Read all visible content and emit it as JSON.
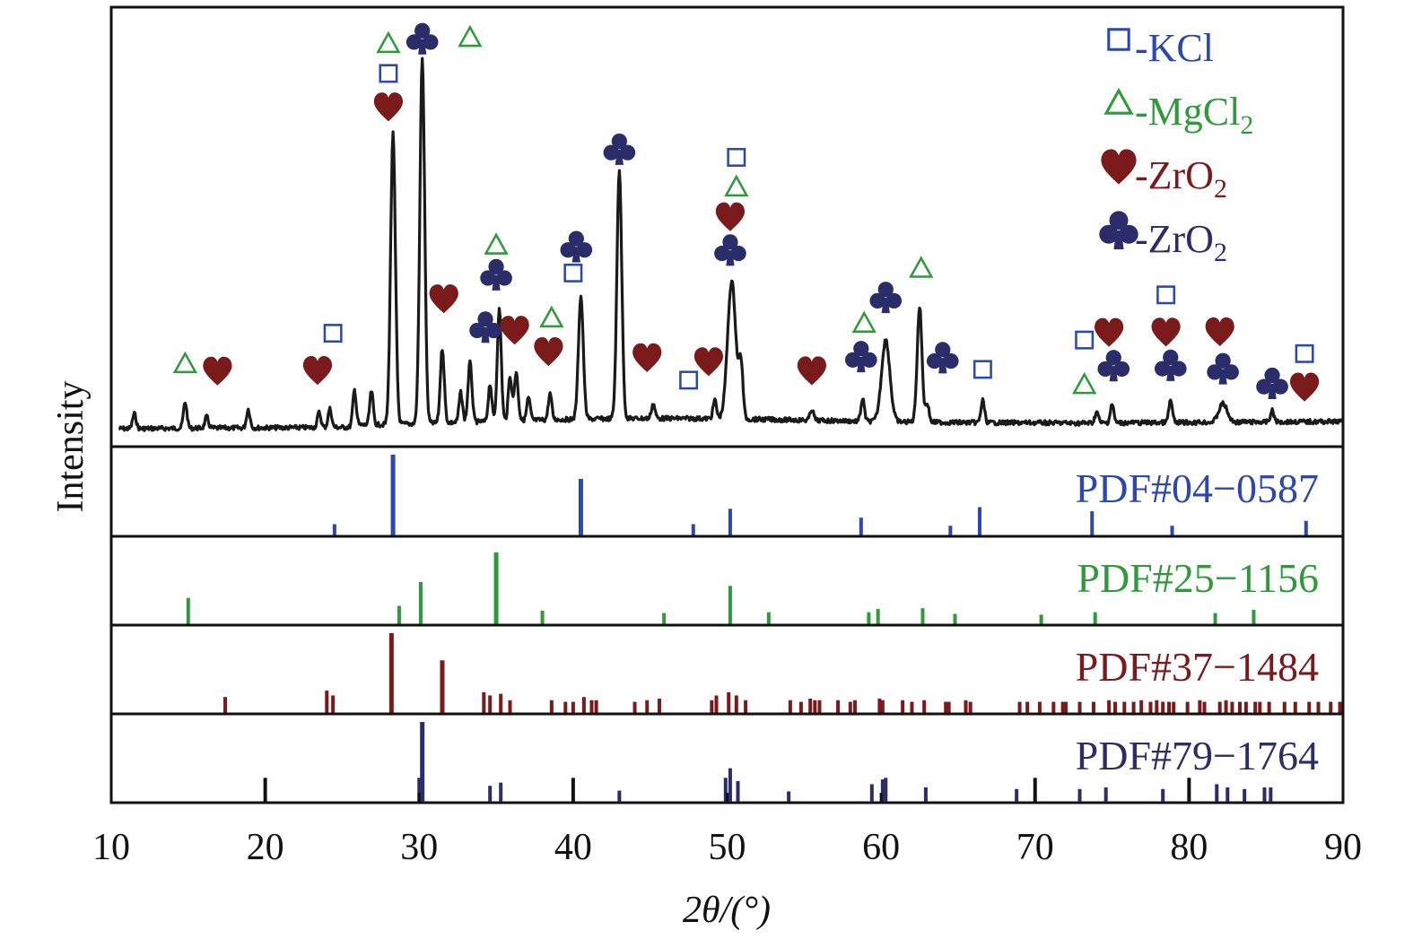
{
  "chart_data": {
    "type": "line",
    "title": "",
    "xlabel": "2θ/(°)",
    "ylabel": "Intensity",
    "xlim": [
      10,
      90
    ],
    "xticks": [
      "10",
      "20",
      "30",
      "40",
      "50",
      "60",
      "70",
      "80",
      "90"
    ],
    "grid": false,
    "colors": {
      "pattern": "#1a1a1a",
      "kcl": "#2a48b0",
      "mgcl2": "#2e9a3a",
      "zro2_m": "#7a1a1a",
      "zro2_t": "#2a2d6a"
    },
    "legend": {
      "placement": "top-right",
      "entries": [
        {
          "symbol": "□",
          "base": "-KCl",
          "sub": "",
          "color": "#2a48b0",
          "marker": "square"
        },
        {
          "symbol": "△",
          "base": "-MgCl",
          "sub": "2",
          "color": "#2e9a3a",
          "marker": "triangle"
        },
        {
          "symbol": "♥",
          "base": "-ZrO",
          "sub": "2",
          "color": "#7a1a1a",
          "marker": "heart"
        },
        {
          "symbol": "♣",
          "base": "-ZrO",
          "sub": "2",
          "color": "#2a2d6a",
          "marker": "club"
        }
      ]
    },
    "pattern_peaks": [
      {
        "x": 11.5,
        "h": 4
      },
      {
        "x": 14.8,
        "h": 7
      },
      {
        "x": 16.2,
        "h": 3
      },
      {
        "x": 18.9,
        "h": 5
      },
      {
        "x": 23.5,
        "h": 4
      },
      {
        "x": 24.2,
        "h": 5
      },
      {
        "x": 25.8,
        "h": 10
      },
      {
        "x": 26.9,
        "h": 9
      },
      {
        "x": 28.3,
        "h": 78
      },
      {
        "x": 30.2,
        "h": 98
      },
      {
        "x": 31.5,
        "h": 20
      },
      {
        "x": 32.7,
        "h": 8
      },
      {
        "x": 33.3,
        "h": 16
      },
      {
        "x": 34.6,
        "h": 10
      },
      {
        "x": 35.2,
        "h": 30
      },
      {
        "x": 35.9,
        "h": 12
      },
      {
        "x": 36.3,
        "h": 13
      },
      {
        "x": 37.1,
        "h": 6
      },
      {
        "x": 38.5,
        "h": 7
      },
      {
        "x": 40.5,
        "h": 33
      },
      {
        "x": 43.0,
        "h": 67
      },
      {
        "x": 45.2,
        "h": 4
      },
      {
        "x": 49.2,
        "h": 5
      },
      {
        "x": 50.3,
        "h": 37
      },
      {
        "x": 50.9,
        "h": 14
      },
      {
        "x": 55.5,
        "h": 3
      },
      {
        "x": 58.8,
        "h": 6
      },
      {
        "x": 60.3,
        "h": 22
      },
      {
        "x": 62.5,
        "h": 31
      },
      {
        "x": 63.0,
        "h": 5
      },
      {
        "x": 66.6,
        "h": 6
      },
      {
        "x": 74.0,
        "h": 3
      },
      {
        "x": 75.0,
        "h": 5
      },
      {
        "x": 78.8,
        "h": 6
      },
      {
        "x": 82.2,
        "h": 5
      },
      {
        "x": 85.4,
        "h": 3
      }
    ],
    "annotations": [
      {
        "phase": "mgcl2",
        "x": 14.8,
        "y": 12
      },
      {
        "phase": "zro2_m",
        "x": 16.9,
        "y": 10
      },
      {
        "phase": "zro2_m",
        "x": 23.4,
        "y": 10
      },
      {
        "phase": "kcl",
        "x": 24.4,
        "y": 20
      },
      {
        "phase": "zro2_m",
        "x": 28.0,
        "y": 80
      },
      {
        "phase": "kcl",
        "x": 28.0,
        "y": 89
      },
      {
        "phase": "mgcl2",
        "x": 28.0,
        "y": 97
      },
      {
        "phase": "zro2_t",
        "x": 30.2,
        "y": 98
      },
      {
        "phase": "mgcl2",
        "x": 33.3,
        "y": 98
      },
      {
        "phase": "zro2_m",
        "x": 31.6,
        "y": 28
      },
      {
        "phase": "zro2_t",
        "x": 34.3,
        "y": 20
      },
      {
        "phase": "zro2_t",
        "x": 35.0,
        "y": 34
      },
      {
        "phase": "mgcl2",
        "x": 35.0,
        "y": 42
      },
      {
        "phase": "zro2_m",
        "x": 36.2,
        "y": 19
      },
      {
        "phase": "mgcl2",
        "x": 38.6,
        "y": 22
      },
      {
        "phase": "zro2_m",
        "x": 38.4,
        "y": 13
      },
      {
        "phase": "kcl",
        "x": 40.0,
        "y": 34
      },
      {
        "phase": "zro2_t",
        "x": 40.2,
        "y": 41
      },
      {
        "phase": "zro2_t",
        "x": 43.0,
        "y": 67
      },
      {
        "phase": "zro2_m",
        "x": 44.8,
        "y": 11
      },
      {
        "phase": "kcl",
        "x": 47.5,
        "y": 5
      },
      {
        "phase": "zro2_m",
        "x": 48.8,
        "y": 10
      },
      {
        "phase": "zro2_t",
        "x": 50.2,
        "y": 40
      },
      {
        "phase": "zro2_m",
        "x": 50.2,
        "y": 49
      },
      {
        "phase": "mgcl2",
        "x": 50.6,
        "y": 57
      },
      {
        "phase": "kcl",
        "x": 50.6,
        "y": 65
      },
      {
        "phase": "zro2_m",
        "x": 55.5,
        "y": 8
      },
      {
        "phase": "zro2_t",
        "x": 58.7,
        "y": 12
      },
      {
        "phase": "mgcl2",
        "x": 58.9,
        "y": 21
      },
      {
        "phase": "zro2_t",
        "x": 60.3,
        "y": 28
      },
      {
        "phase": "mgcl2",
        "x": 62.6,
        "y": 36
      },
      {
        "phase": "zro2_t",
        "x": 64.0,
        "y": 12
      },
      {
        "phase": "kcl",
        "x": 66.6,
        "y": 9
      },
      {
        "phase": "mgcl2",
        "x": 73.2,
        "y": 5
      },
      {
        "phase": "kcl",
        "x": 73.2,
        "y": 17
      },
      {
        "phase": "zro2_m",
        "x": 74.8,
        "y": 19
      },
      {
        "phase": "zro2_t",
        "x": 75.1,
        "y": 10
      },
      {
        "phase": "kcl",
        "x": 78.5,
        "y": 29
      },
      {
        "phase": "zro2_m",
        "x": 78.5,
        "y": 19
      },
      {
        "phase": "zro2_t",
        "x": 78.8,
        "y": 10
      },
      {
        "phase": "zro2_m",
        "x": 82.0,
        "y": 19
      },
      {
        "phase": "zro2_t",
        "x": 82.2,
        "y": 9
      },
      {
        "phase": "zro2_t",
        "x": 85.4,
        "y": 5
      },
      {
        "phase": "kcl",
        "x": 87.5,
        "y": 13
      },
      {
        "phase": "zro2_m",
        "x": 87.5,
        "y": 4
      }
    ],
    "references": [
      {
        "label": "PDF#04−0587",
        "color": "#2a48b0",
        "lines": [
          {
            "x": 24.5,
            "h": 14
          },
          {
            "x": 28.3,
            "h": 100
          },
          {
            "x": 40.5,
            "h": 70
          },
          {
            "x": 47.8,
            "h": 14
          },
          {
            "x": 50.2,
            "h": 33
          },
          {
            "x": 58.7,
            "h": 22
          },
          {
            "x": 64.5,
            "h": 12
          },
          {
            "x": 66.4,
            "h": 35
          },
          {
            "x": 73.7,
            "h": 30
          },
          {
            "x": 78.9,
            "h": 12
          },
          {
            "x": 87.6,
            "h": 18
          }
        ]
      },
      {
        "label": "PDF#25−1156",
        "color": "#2e9a3a",
        "lines": [
          {
            "x": 15.0,
            "h": 33
          },
          {
            "x": 28.7,
            "h": 23
          },
          {
            "x": 30.1,
            "h": 53
          },
          {
            "x": 35.0,
            "h": 90
          },
          {
            "x": 38.0,
            "h": 17
          },
          {
            "x": 45.9,
            "h": 14
          },
          {
            "x": 50.2,
            "h": 48
          },
          {
            "x": 52.7,
            "h": 15
          },
          {
            "x": 59.2,
            "h": 15
          },
          {
            "x": 59.8,
            "h": 19
          },
          {
            "x": 62.7,
            "h": 20
          },
          {
            "x": 64.8,
            "h": 13
          },
          {
            "x": 70.4,
            "h": 12
          },
          {
            "x": 73.9,
            "h": 15
          },
          {
            "x": 81.7,
            "h": 14
          },
          {
            "x": 84.2,
            "h": 18
          }
        ]
      },
      {
        "label": "PDF#37−1484",
        "color": "#7a1a1a",
        "lines": [
          {
            "x": 17.4,
            "h": 20
          },
          {
            "x": 24.0,
            "h": 28
          },
          {
            "x": 24.4,
            "h": 22
          },
          {
            "x": 28.2,
            "h": 100
          },
          {
            "x": 31.5,
            "h": 66
          },
          {
            "x": 34.2,
            "h": 26
          },
          {
            "x": 34.6,
            "h": 22
          },
          {
            "x": 35.3,
            "h": 24
          },
          {
            "x": 35.9,
            "h": 16
          },
          {
            "x": 38.6,
            "h": 16
          },
          {
            "x": 39.5,
            "h": 14
          },
          {
            "x": 40.0,
            "h": 14
          },
          {
            "x": 40.7,
            "h": 20
          },
          {
            "x": 41.2,
            "h": 16
          },
          {
            "x": 41.5,
            "h": 16
          },
          {
            "x": 44.0,
            "h": 14
          },
          {
            "x": 44.8,
            "h": 16
          },
          {
            "x": 45.6,
            "h": 18
          },
          {
            "x": 49.0,
            "h": 16
          },
          {
            "x": 49.3,
            "h": 22
          },
          {
            "x": 50.1,
            "h": 26
          },
          {
            "x": 50.6,
            "h": 22
          },
          {
            "x": 51.2,
            "h": 16
          },
          {
            "x": 54.1,
            "h": 16
          },
          {
            "x": 54.8,
            "h": 14
          },
          {
            "x": 55.4,
            "h": 18
          },
          {
            "x": 55.7,
            "h": 16
          },
          {
            "x": 56.0,
            "h": 16
          },
          {
            "x": 57.2,
            "h": 16
          },
          {
            "x": 58.0,
            "h": 14
          },
          {
            "x": 58.3,
            "h": 16
          },
          {
            "x": 59.9,
            "h": 18
          },
          {
            "x": 60.1,
            "h": 16
          },
          {
            "x": 61.4,
            "h": 16
          },
          {
            "x": 62.0,
            "h": 14
          },
          {
            "x": 62.8,
            "h": 16
          },
          {
            "x": 64.2,
            "h": 14
          },
          {
            "x": 64.4,
            "h": 14
          },
          {
            "x": 65.5,
            "h": 16
          },
          {
            "x": 65.8,
            "h": 14
          },
          {
            "x": 69.0,
            "h": 14
          },
          {
            "x": 69.5,
            "h": 14
          },
          {
            "x": 70.3,
            "h": 14
          },
          {
            "x": 71.2,
            "h": 14
          },
          {
            "x": 71.8,
            "h": 14
          },
          {
            "x": 72.0,
            "h": 14
          },
          {
            "x": 72.9,
            "h": 14
          },
          {
            "x": 73.8,
            "h": 14
          },
          {
            "x": 74.8,
            "h": 16
          },
          {
            "x": 75.2,
            "h": 14
          },
          {
            "x": 75.8,
            "h": 14
          },
          {
            "x": 76.4,
            "h": 14
          },
          {
            "x": 76.9,
            "h": 16
          },
          {
            "x": 77.5,
            "h": 14
          },
          {
            "x": 77.9,
            "h": 16
          },
          {
            "x": 78.3,
            "h": 14
          },
          {
            "x": 78.7,
            "h": 14
          },
          {
            "x": 79.0,
            "h": 14
          },
          {
            "x": 79.9,
            "h": 14
          },
          {
            "x": 80.7,
            "h": 16
          },
          {
            "x": 81.0,
            "h": 14
          },
          {
            "x": 82.0,
            "h": 14
          },
          {
            "x": 82.4,
            "h": 16
          },
          {
            "x": 82.8,
            "h": 14
          },
          {
            "x": 83.3,
            "h": 14
          },
          {
            "x": 83.7,
            "h": 14
          },
          {
            "x": 84.3,
            "h": 14
          },
          {
            "x": 84.6,
            "h": 14
          },
          {
            "x": 85.2,
            "h": 14
          },
          {
            "x": 86.2,
            "h": 14
          },
          {
            "x": 86.9,
            "h": 14
          },
          {
            "x": 87.8,
            "h": 14
          },
          {
            "x": 88.4,
            "h": 14
          },
          {
            "x": 89.2,
            "h": 14
          },
          {
            "x": 89.8,
            "h": 14
          }
        ]
      },
      {
        "label": "PDF#79−1764",
        "color": "#2a2d6a",
        "lines": [
          {
            "x": 20.0,
            "h": 30,
            "c": "#111111"
          },
          {
            "x": 30.0,
            "h": 30
          },
          {
            "x": 30.2,
            "h": 100
          },
          {
            "x": 34.6,
            "h": 20
          },
          {
            "x": 35.3,
            "h": 24
          },
          {
            "x": 40.0,
            "h": 30,
            "c": "#111111"
          },
          {
            "x": 43.0,
            "h": 14
          },
          {
            "x": 49.9,
            "h": 30
          },
          {
            "x": 50.2,
            "h": 42
          },
          {
            "x": 50.7,
            "h": 26
          },
          {
            "x": 54.0,
            "h": 13
          },
          {
            "x": 59.4,
            "h": 22
          },
          {
            "x": 60.1,
            "h": 28
          },
          {
            "x": 60.3,
            "h": 30
          },
          {
            "x": 62.9,
            "h": 18
          },
          {
            "x": 68.8,
            "h": 16
          },
          {
            "x": 70.0,
            "h": 30,
            "c": "#111111"
          },
          {
            "x": 72.9,
            "h": 16
          },
          {
            "x": 74.6,
            "h": 18
          },
          {
            "x": 78.3,
            "h": 16
          },
          {
            "x": 80.0,
            "h": 30,
            "c": "#111111"
          },
          {
            "x": 81.8,
            "h": 22
          },
          {
            "x": 82.5,
            "h": 18
          },
          {
            "x": 83.6,
            "h": 16
          },
          {
            "x": 84.9,
            "h": 18
          },
          {
            "x": 85.3,
            "h": 18
          }
        ]
      }
    ]
  }
}
